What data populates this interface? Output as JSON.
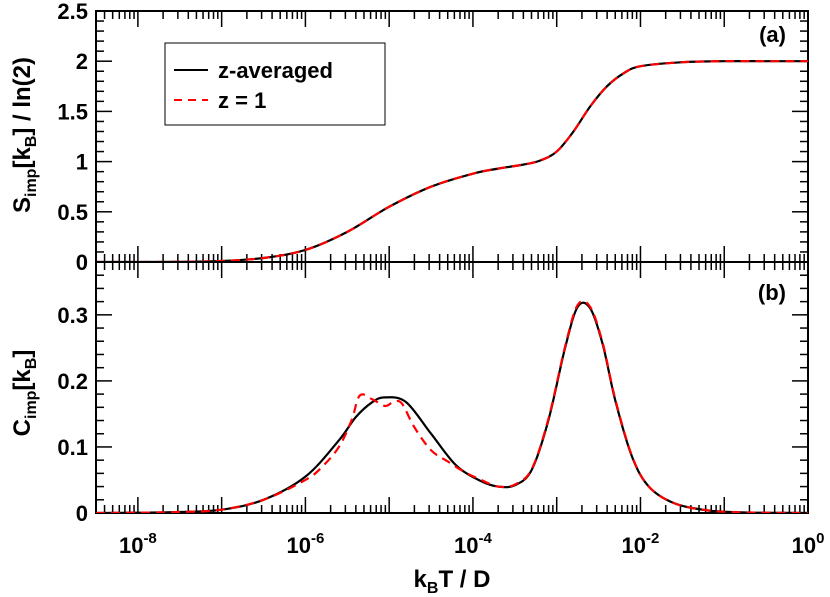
{
  "colors": {
    "series_solid": "#000000",
    "series_dashed": "#ff0000",
    "axes": "#000000"
  },
  "chart_data": [
    {
      "panel": "a",
      "type": "line",
      "label": "(a)",
      "ylabel_main": "S",
      "ylabel_sub": "imp",
      "ylabel_rest1": "[k",
      "ylabel_sub2": "B",
      "ylabel_rest2": "] / ln(2)",
      "xscale": "log10",
      "xlim_exp": [
        -8.5,
        0
      ],
      "ylim": [
        0,
        2.5
      ],
      "yticks": [
        "0",
        "0.5",
        "1",
        "1.5",
        "2",
        "2.5"
      ],
      "ytick_values": [
        0,
        0.5,
        1,
        1.5,
        2,
        2.5
      ],
      "legend": {
        "position": "top-left",
        "entries": [
          "z-averaged",
          "z = 1"
        ]
      },
      "series": [
        {
          "name": "z-averaged",
          "style": "solid",
          "x_exp": [
            -8.5,
            -8,
            -7.5,
            -7,
            -6.5,
            -6,
            -5.5,
            -5,
            -4.5,
            -4,
            -3.7,
            -3.4,
            -3.2,
            -3,
            -2.8,
            -2.6,
            -2.4,
            -2.2,
            -2,
            -1.5,
            -1,
            -0.5,
            0
          ],
          "y": [
            0,
            0,
            0.002,
            0.01,
            0.04,
            0.12,
            0.3,
            0.55,
            0.75,
            0.88,
            0.93,
            0.97,
            1.01,
            1.1,
            1.3,
            1.55,
            1.75,
            1.88,
            1.95,
            1.99,
            2,
            2,
            2
          ]
        },
        {
          "name": "z = 1",
          "style": "dashed",
          "x_exp": [
            -8.5,
            -8,
            -7.5,
            -7,
            -6.5,
            -6,
            -5.5,
            -5,
            -4.5,
            -4,
            -3.7,
            -3.4,
            -3.2,
            -3,
            -2.8,
            -2.6,
            -2.4,
            -2.2,
            -2,
            -1.5,
            -1,
            -0.5,
            0
          ],
          "y": [
            0,
            0,
            0.002,
            0.01,
            0.04,
            0.12,
            0.3,
            0.55,
            0.75,
            0.88,
            0.93,
            0.97,
            1.01,
            1.1,
            1.3,
            1.55,
            1.75,
            1.88,
            1.95,
            1.99,
            2,
            2,
            2
          ]
        }
      ]
    },
    {
      "panel": "b",
      "type": "line",
      "label": "(b)",
      "ylabel_main": "C",
      "ylabel_sub": "imp",
      "ylabel_rest1": "[k",
      "ylabel_sub2": "B",
      "ylabel_rest2": "]",
      "xscale": "log10",
      "xlim_exp": [
        -8.5,
        0
      ],
      "ylim": [
        0,
        0.38
      ],
      "yticks": [
        "0",
        "0.1",
        "0.2",
        "0.3"
      ],
      "ytick_values": [
        0,
        0.1,
        0.2,
        0.3
      ],
      "xtick_labels": [
        {
          "base": "10",
          "exp": "-8",
          "value_exp": -8
        },
        {
          "base": "10",
          "exp": "-6",
          "value_exp": -6
        },
        {
          "base": "10",
          "exp": "-4",
          "value_exp": -4
        },
        {
          "base": "10",
          "exp": "-2",
          "value_exp": -2
        },
        {
          "base": "10",
          "exp": "0",
          "value_exp": 0
        }
      ],
      "xlabel_main": "k",
      "xlabel_sub": "B",
      "xlabel_rest": "T / D",
      "series": [
        {
          "name": "z-averaged",
          "style": "solid",
          "x_exp": [
            -8.5,
            -8,
            -7.5,
            -7,
            -6.5,
            -6,
            -5.6,
            -5.4,
            -5.2,
            -5.05,
            -4.8,
            -4.5,
            -4.2,
            -3.9,
            -3.7,
            -3.5,
            -3.3,
            -3.1,
            -2.9,
            -2.75,
            -2.6,
            -2.45,
            -2.3,
            -2.1,
            -1.9,
            -1.6,
            -1.2,
            -0.8,
            -0.4,
            0
          ],
          "y": [
            0,
            0.0005,
            0.0015,
            0.005,
            0.02,
            0.055,
            0.11,
            0.145,
            0.168,
            0.175,
            0.168,
            0.12,
            0.072,
            0.048,
            0.04,
            0.042,
            0.065,
            0.14,
            0.25,
            0.312,
            0.31,
            0.255,
            0.17,
            0.085,
            0.04,
            0.015,
            0.004,
            0.001,
            0.0003,
            0
          ]
        },
        {
          "name": "z = 1",
          "style": "dashed",
          "x_exp": [
            -8.5,
            -8,
            -7.5,
            -7,
            -6.5,
            -6,
            -5.8,
            -5.6,
            -5.45,
            -5.35,
            -5.2,
            -5.05,
            -4.95,
            -4.85,
            -4.7,
            -4.5,
            -4.3,
            -4.1,
            -3.9,
            -3.7,
            -3.5,
            -3.3,
            -3.1,
            -2.9,
            -2.75,
            -2.6,
            -2.45,
            -2.3,
            -2.1,
            -1.9,
            -1.6,
            -1.2,
            -0.8,
            -0.4,
            0
          ],
          "y": [
            0,
            0.0005,
            0.0015,
            0.005,
            0.02,
            0.05,
            0.07,
            0.1,
            0.14,
            0.178,
            0.172,
            0.162,
            0.168,
            0.166,
            0.13,
            0.095,
            0.078,
            0.062,
            0.05,
            0.04,
            0.043,
            0.066,
            0.142,
            0.252,
            0.315,
            0.312,
            0.257,
            0.172,
            0.086,
            0.04,
            0.015,
            0.004,
            0.001,
            0.0003,
            0
          ]
        }
      ]
    }
  ]
}
